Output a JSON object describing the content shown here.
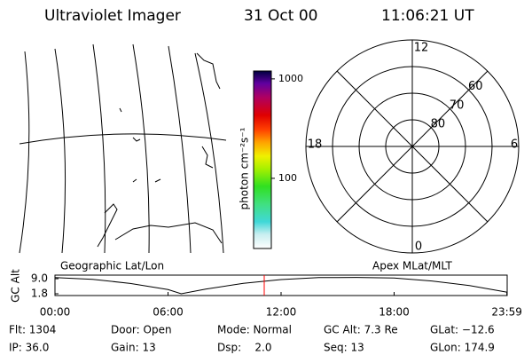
{
  "header": {
    "instrument": "Ultraviolet Imager",
    "date": "31 Oct 00",
    "time": "11:06:21 UT"
  },
  "colorbar": {
    "label": "photon cm⁻²s⁻¹",
    "scale": "log",
    "lim": [
      19.7,
      1200
    ],
    "ticks": [
      100,
      1000
    ]
  },
  "polar": {
    "lat_lim": [
      50,
      90
    ],
    "lat_labels": [
      60,
      70,
      80
    ],
    "mlt_top": "12",
    "mlt_left": "18",
    "mlt_right": "6",
    "mlt_bottom": "0"
  },
  "captions": {
    "left": "Geographic Lat/Lon",
    "right": "Apex MLat/MLT"
  },
  "altitude": {
    "ylabel": "GC Alt",
    "ylim": [
      0.95,
      10.7
    ],
    "yticks": [
      {
        "value": 9,
        "label": "9.0"
      },
      1.8
    ],
    "xlim": [
      0,
      24
    ],
    "xticks": [
      {
        "value": 0,
        "label": "00:00"
      },
      {
        "value": 6,
        "label": "06:00"
      },
      {
        "value": 12,
        "label": "12:00"
      },
      {
        "value": 18,
        "label": "18:00"
      },
      {
        "value": 23.983,
        "label": "23:59"
      }
    ],
    "x": [
      0,
      2,
      4,
      6,
      6.7,
      8,
      10,
      12,
      14,
      16,
      18,
      20,
      22,
      24
    ],
    "values": [
      9.5,
      8.7,
      6.7,
      3.8,
      1.8,
      4.0,
      6.8,
      8.6,
      9.5,
      9.6,
      9.3,
      7.9,
      5.7,
      2.5
    ],
    "marker_hour": 11.106,
    "marker_color": "#ff0000"
  },
  "footer": {
    "rows": [
      [
        "Flt: 1304",
        "Door: Open",
        "Mode: Normal",
        "GC Alt: 7.3 Re",
        "GLat: −12.6"
      ],
      [
        "IP: 36.0",
        "Gain: 13",
        "Dsp:    2.0",
        "Seq: 13",
        "GLon: 174.9"
      ]
    ]
  }
}
